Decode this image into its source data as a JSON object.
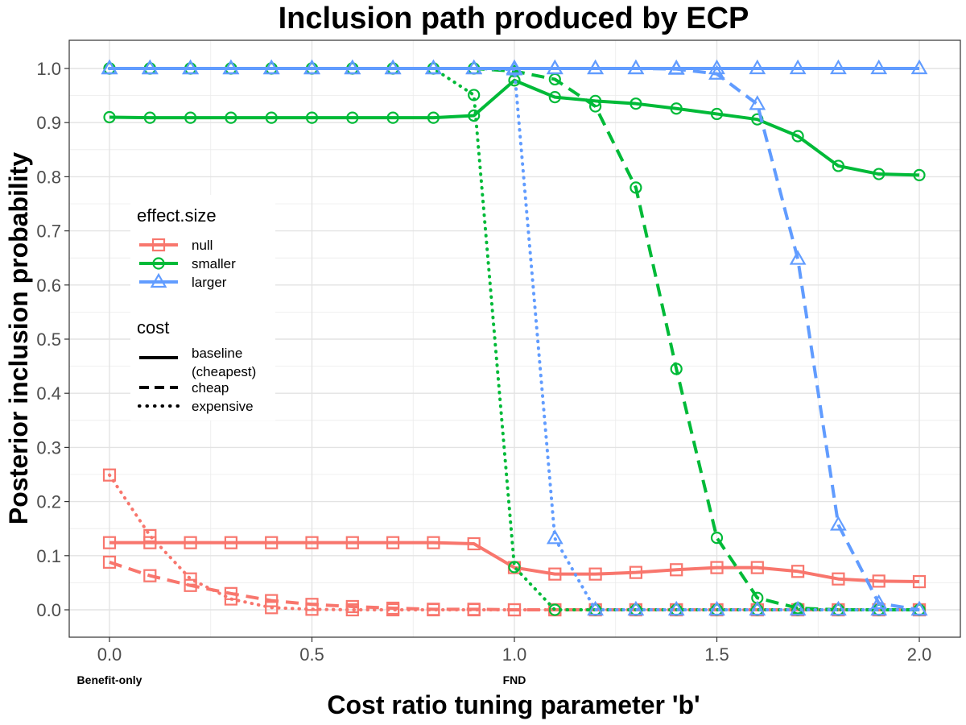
{
  "chart_data": {
    "type": "line",
    "title": "Inclusion path produced by ECP",
    "xlabel": "Cost ratio tuning parameter 'b'",
    "ylabel": "Posterior inclusion probability",
    "xlim": [
      0,
      2
    ],
    "ylim": [
      0,
      1
    ],
    "x_ticks": [
      0,
      0.5,
      1,
      1.5,
      2
    ],
    "x_tick_labels": [
      "0.0",
      "0.5",
      "1.0",
      "1.5",
      "2.0"
    ],
    "y_ticks": [
      0,
      0.1,
      0.2,
      0.3,
      0.4,
      0.5,
      0.6,
      0.7,
      0.8,
      0.9,
      1.0
    ],
    "y_tick_labels": [
      "0.0",
      "0.1",
      "0.2",
      "0.3",
      "0.4",
      "0.5",
      "0.6",
      "0.7",
      "0.8",
      "0.9",
      "1.0"
    ],
    "annotations": [
      {
        "x": 0,
        "text": "Benefit-only"
      },
      {
        "x": 1,
        "text": "FND"
      }
    ],
    "x": [
      0,
      0.1,
      0.2,
      0.3,
      0.4,
      0.5,
      0.6,
      0.7,
      0.8,
      0.9,
      1.0,
      1.1,
      1.2,
      1.3,
      1.4,
      1.5,
      1.6,
      1.7,
      1.8,
      1.9,
      2.0
    ],
    "legend": {
      "color_title": "effect.size",
      "color_entries": [
        {
          "key": "null",
          "label": "null",
          "color": "#F8766D",
          "marker": "square"
        },
        {
          "key": "smaller",
          "label": "smaller",
          "color": "#00BA38",
          "marker": "circle"
        },
        {
          "key": "larger",
          "label": "larger",
          "color": "#619CFF",
          "marker": "triangle"
        }
      ],
      "linetype_title": "cost",
      "linetype_entries": [
        {
          "key": "baseline",
          "label_line1": "baseline",
          "label_line2": "(cheapest)",
          "dash": "solid"
        },
        {
          "key": "cheap",
          "label_line1": "cheap",
          "label_line2": "",
          "dash": "dashed"
        },
        {
          "key": "expensive",
          "label_line1": "expensive",
          "label_line2": "",
          "dash": "dotted"
        }
      ]
    },
    "series": [
      {
        "name": "null-baseline",
        "effect": "null",
        "cost": "baseline",
        "values": [
          0.124,
          0.124,
          0.124,
          0.124,
          0.124,
          0.124,
          0.124,
          0.124,
          0.124,
          0.122,
          0.078,
          0.066,
          0.066,
          0.069,
          0.074,
          0.078,
          0.078,
          0.071,
          0.057,
          0.053,
          0.052
        ]
      },
      {
        "name": "null-cheap",
        "effect": "null",
        "cost": "cheap",
        "values": [
          0.088,
          0.063,
          0.045,
          0.03,
          0.017,
          0.01,
          0.006,
          0.003,
          0.001,
          0.001,
          0.0,
          0.0,
          0.0,
          0.0,
          0.0,
          0.0,
          0.0,
          0.0,
          0.0,
          0.0,
          0.0
        ]
      },
      {
        "name": "null-expensive",
        "effect": "null",
        "cost": "expensive",
        "values": [
          0.249,
          0.137,
          0.057,
          0.02,
          0.004,
          0.001,
          0.0,
          0.0,
          0.0,
          0.0,
          0.0,
          0.0,
          0.0,
          0.0,
          0.0,
          0.0,
          0.0,
          0.0,
          0.0,
          0.0,
          0.0
        ]
      },
      {
        "name": "smaller-baseline",
        "effect": "smaller",
        "cost": "baseline",
        "values": [
          0.91,
          0.909,
          0.909,
          0.909,
          0.909,
          0.909,
          0.909,
          0.909,
          0.909,
          0.913,
          0.978,
          0.947,
          0.94,
          0.935,
          0.926,
          0.916,
          0.906,
          0.875,
          0.82,
          0.805,
          0.803
        ]
      },
      {
        "name": "smaller-cheap",
        "effect": "smaller",
        "cost": "cheap",
        "values": [
          1.0,
          1.0,
          1.0,
          1.0,
          1.0,
          1.0,
          1.0,
          1.0,
          1.0,
          1.0,
          0.995,
          0.98,
          0.93,
          0.78,
          0.445,
          0.133,
          0.022,
          0.003,
          0.0,
          0.0,
          0.0
        ]
      },
      {
        "name": "smaller-expensive",
        "effect": "smaller",
        "cost": "expensive",
        "values": [
          1.0,
          1.0,
          1.0,
          1.0,
          1.0,
          1.0,
          1.0,
          1.0,
          1.0,
          0.951,
          0.079,
          0.0,
          0.0,
          0.0,
          0.0,
          0.0,
          0.0,
          0.0,
          0.0,
          0.0,
          0.0
        ]
      },
      {
        "name": "larger-baseline",
        "effect": "larger",
        "cost": "baseline",
        "values": [
          1.0,
          1.0,
          1.0,
          1.0,
          1.0,
          1.0,
          1.0,
          1.0,
          1.0,
          1.0,
          1.0,
          1.0,
          1.0,
          1.0,
          1.0,
          1.0,
          1.0,
          1.0,
          1.0,
          1.0,
          1.0
        ]
      },
      {
        "name": "larger-cheap",
        "effect": "larger",
        "cost": "cheap",
        "values": [
          1.0,
          1.0,
          1.0,
          1.0,
          1.0,
          1.0,
          1.0,
          1.0,
          1.0,
          1.0,
          1.0,
          1.0,
          1.0,
          1.0,
          0.999,
          0.99,
          0.934,
          0.648,
          0.157,
          0.012,
          0.0
        ]
      },
      {
        "name": "larger-expensive",
        "effect": "larger",
        "cost": "expensive",
        "values": [
          1.0,
          1.0,
          1.0,
          1.0,
          1.0,
          1.0,
          1.0,
          1.0,
          1.0,
          1.0,
          0.998,
          0.132,
          0.0,
          0.0,
          0.0,
          0.0,
          0.0,
          0.0,
          0.0,
          0.0,
          0.0
        ]
      }
    ]
  }
}
